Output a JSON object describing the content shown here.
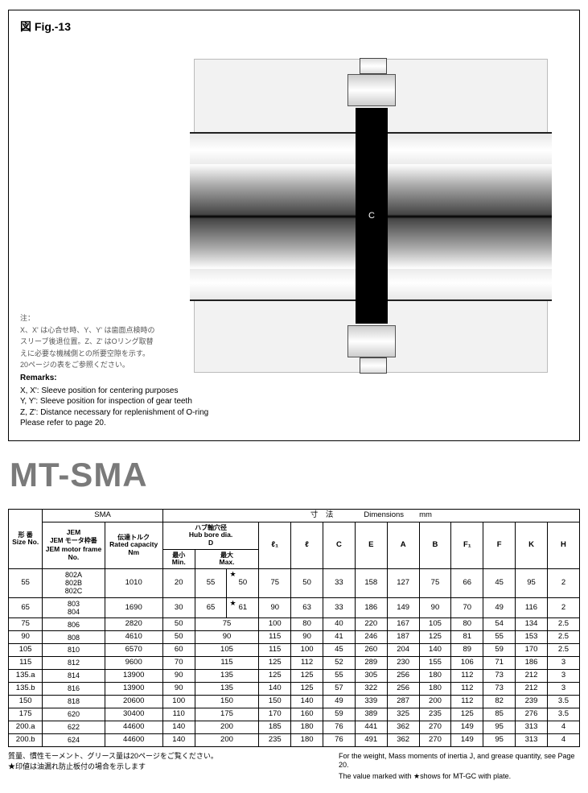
{
  "figure": {
    "label": "図 Fig.-13",
    "diagram_center_label": "C",
    "remarks_jp_head": "注：",
    "remarks_jp_1": "X、X' は心合せ時、Y、Y' は歯面点検時の",
    "remarks_jp_2": "スリーブ後退位置。Z、Z' はOリング取替",
    "remarks_jp_3": "えに必要な機械側との所要空隙を示す。",
    "remarks_jp_4": "20ページの表をご参照ください。",
    "remarks_en_head": "Remarks:",
    "remarks_en_1": "X, X': Sleeve position for centering purposes",
    "remarks_en_2": "Y, Y': Sleeve position for inspection of gear teeth",
    "remarks_en_3": "Z, Z': Distance necessary for replenishment of O-ring",
    "remarks_en_4": "Please refer to page 20."
  },
  "title": "MT-SMA",
  "table": {
    "hdr_size_jp": "形 番",
    "hdr_size_en": "Size No.",
    "hdr_sma": "SMA",
    "hdr_jem_jp": "JEM モータ枠番",
    "hdr_jem_en": "JEM motor frame No.",
    "hdr_torque_jp": "伝達トルク",
    "hdr_torque_en": "Rated capacity",
    "hdr_torque_unit": "Nm",
    "hdr_dim_jp": "寸　法",
    "hdr_dim_en": "Dimensions",
    "hdr_dim_unit": "mm",
    "hdr_bore_jp": "ハブ軸穴径",
    "hdr_bore_en": "Hub bore dia.",
    "hdr_bore_d": "D",
    "hdr_min_jp": "最小",
    "hdr_min_en": "Min.",
    "hdr_max_jp": "最大",
    "hdr_max_en": "Max.",
    "hdr_l1": "ℓ₁",
    "hdr_l": "ℓ",
    "hdr_C": "C",
    "hdr_E": "E",
    "hdr_A": "A",
    "hdr_B": "B",
    "hdr_F1": "F₁",
    "hdr_F": "F",
    "hdr_K": "K",
    "hdr_H": "H",
    "rows": [
      {
        "size": "55",
        "jem": "802A\n802B\n802C",
        "torque": "1010",
        "min": "20",
        "max1": "55",
        "max2": "50",
        "star": true,
        "l1": "75",
        "l": "50",
        "C": "33",
        "E": "158",
        "A": "127",
        "B": "75",
        "F1": "66",
        "F": "45",
        "K": "95",
        "H": "2"
      },
      {
        "size": "65",
        "jem": "803\n804",
        "torque": "1690",
        "min": "30",
        "max1": "65",
        "max2": "61",
        "star": true,
        "l1": "90",
        "l": "63",
        "C": "33",
        "E": "186",
        "A": "149",
        "B": "90",
        "F1": "70",
        "F": "49",
        "K": "116",
        "H": "2"
      },
      {
        "size": "75",
        "jem": "806",
        "torque": "2820",
        "min": "50",
        "max": "75",
        "l1": "100",
        "l": "80",
        "C": "40",
        "E": "220",
        "A": "167",
        "B": "105",
        "F1": "80",
        "F": "54",
        "K": "134",
        "H": "2.5"
      },
      {
        "size": "90",
        "jem": "808",
        "torque": "4610",
        "min": "50",
        "max": "90",
        "l1": "115",
        "l": "90",
        "C": "41",
        "E": "246",
        "A": "187",
        "B": "125",
        "F1": "81",
        "F": "55",
        "K": "153",
        "H": "2.5"
      },
      {
        "size": "105",
        "jem": "810",
        "torque": "6570",
        "min": "60",
        "max": "105",
        "l1": "115",
        "l": "100",
        "C": "45",
        "E": "260",
        "A": "204",
        "B": "140",
        "F1": "89",
        "F": "59",
        "K": "170",
        "H": "2.5"
      },
      {
        "size": "115",
        "jem": "812",
        "torque": "9600",
        "min": "70",
        "max": "115",
        "l1": "125",
        "l": "112",
        "C": "52",
        "E": "289",
        "A": "230",
        "B": "155",
        "F1": "106",
        "F": "71",
        "K": "186",
        "H": "3"
      },
      {
        "size": "135.a",
        "jem": "814",
        "torque": "13900",
        "min": "90",
        "max": "135",
        "l1": "125",
        "l": "125",
        "C": "55",
        "E": "305",
        "A": "256",
        "B": "180",
        "F1": "112",
        "F": "73",
        "K": "212",
        "H": "3"
      },
      {
        "size": "135.b",
        "jem": "816",
        "torque": "13900",
        "min": "90",
        "max": "135",
        "l1": "140",
        "l": "125",
        "C": "57",
        "E": "322",
        "A": "256",
        "B": "180",
        "F1": "112",
        "F": "73",
        "K": "212",
        "H": "3"
      },
      {
        "size": "150",
        "jem": "818",
        "torque": "20600",
        "min": "100",
        "max": "150",
        "l1": "150",
        "l": "140",
        "C": "49",
        "E": "339",
        "A": "287",
        "B": "200",
        "F1": "112",
        "F": "82",
        "K": "239",
        "H": "3.5"
      },
      {
        "size": "175",
        "jem": "620",
        "torque": "30400",
        "min": "110",
        "max": "175",
        "l1": "170",
        "l": "160",
        "C": "59",
        "E": "389",
        "A": "325",
        "B": "235",
        "F1": "125",
        "F": "85",
        "K": "276",
        "H": "3.5"
      },
      {
        "size": "200.a",
        "jem": "622",
        "torque": "44600",
        "min": "140",
        "max": "200",
        "l1": "185",
        "l": "180",
        "C": "76",
        "E": "441",
        "A": "362",
        "B": "270",
        "F1": "149",
        "F": "95",
        "K": "313",
        "H": "4"
      },
      {
        "size": "200.b",
        "jem": "624",
        "torque": "44600",
        "min": "140",
        "max": "200",
        "l1": "235",
        "l": "180",
        "C": "76",
        "E": "491",
        "A": "362",
        "B": "270",
        "F1": "149",
        "F": "95",
        "K": "313",
        "H": "4"
      }
    ]
  },
  "footnotes": {
    "left1": "質量、慣性モーメント、グリース量は20ページをご覧ください。",
    "left2": "★印値は油漏れ防止板付の場合を示します",
    "right1": "For the weight, Mass moments of inertia J, and grease quantity, see Page 20.",
    "right2": "The value marked with ★shows for MT-GC with plate."
  },
  "style": {
    "title_color": "#7a7a7a",
    "border_color": "#000000",
    "body_font_size": 10,
    "title_font_size": 42
  }
}
